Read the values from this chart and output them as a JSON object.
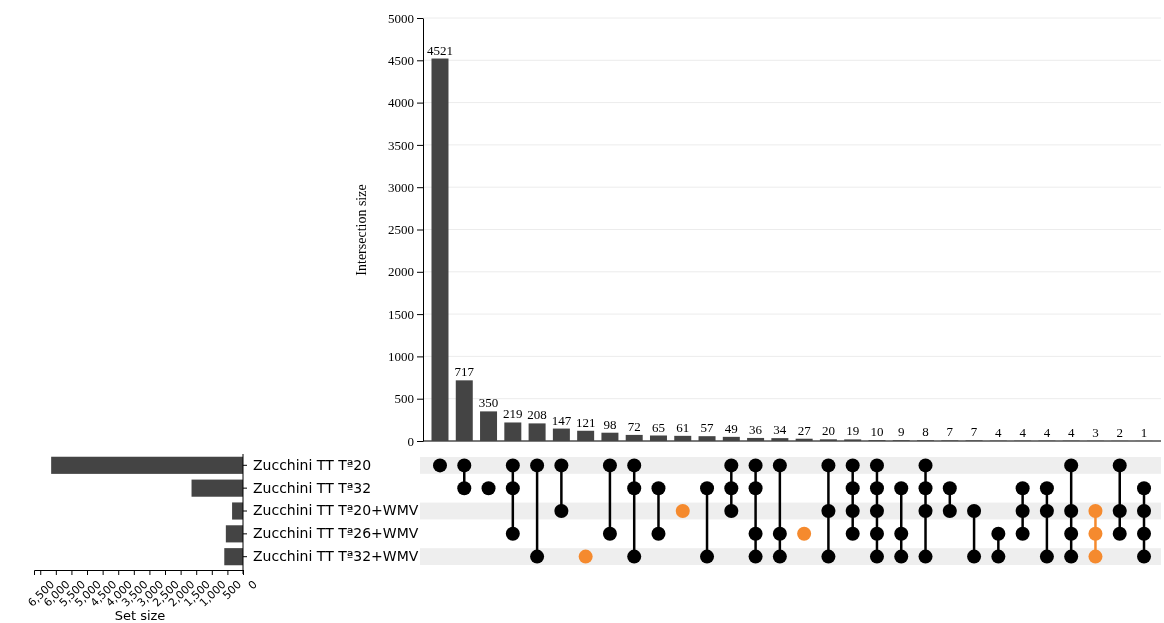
{
  "chart_data": [
    {
      "type": "bar",
      "ylabel": "Intersection size",
      "categories": [
        null,
        null,
        null,
        null,
        null,
        null,
        null,
        null,
        null,
        null,
        null,
        null,
        null,
        null,
        null,
        null,
        null,
        null,
        null,
        null,
        null,
        null,
        null,
        null,
        null,
        null,
        null,
        null,
        null,
        null
      ],
      "values": [
        4521,
        717,
        350,
        219,
        208,
        147,
        121,
        98,
        72,
        65,
        61,
        57,
        49,
        36,
        34,
        27,
        20,
        19,
        10,
        9,
        8,
        7,
        7,
        4,
        4,
        4,
        4,
        3,
        2,
        1
      ],
      "color": "#444444",
      "ylim": [
        0,
        5000
      ],
      "yticks": [
        0,
        500,
        1000,
        1500,
        2000,
        2500,
        3000,
        3500,
        4000,
        4500,
        5000
      ],
      "grid": "y",
      "data_labels": true
    },
    {
      "type": "bar",
      "orientation": "horizontal",
      "xlabel": "Set size",
      "categories": [
        "Zucchini TT Tª20",
        "Zucchini TT Tª32",
        "Zucchini TT Tª20+WMV",
        "Zucchini TT Tª26+WMV",
        "Zucchini TT Tª32+WMV"
      ],
      "values": [
        6150,
        1650,
        350,
        550,
        600
      ],
      "color": "#444444",
      "xlim": [
        6700,
        0
      ],
      "xticks": [
        {
          "value": 6500,
          "label": "6,500"
        },
        {
          "value": 6000,
          "label": "6,000"
        },
        {
          "value": 5500,
          "label": "5,500"
        },
        {
          "value": 5000,
          "label": "5,000"
        },
        {
          "value": 4500,
          "label": "4,500"
        },
        {
          "value": 4000,
          "label": "4,000"
        },
        {
          "value": 3500,
          "label": "3,500"
        },
        {
          "value": 3000,
          "label": "3,000"
        },
        {
          "value": 2500,
          "label": "2,500"
        },
        {
          "value": 2000,
          "label": "2,000"
        },
        {
          "value": 1500,
          "label": "1,500"
        },
        {
          "value": 1000,
          "label": "1,000"
        },
        {
          "value": 500,
          "label": "500"
        },
        0
      ]
    }
  ]
}
